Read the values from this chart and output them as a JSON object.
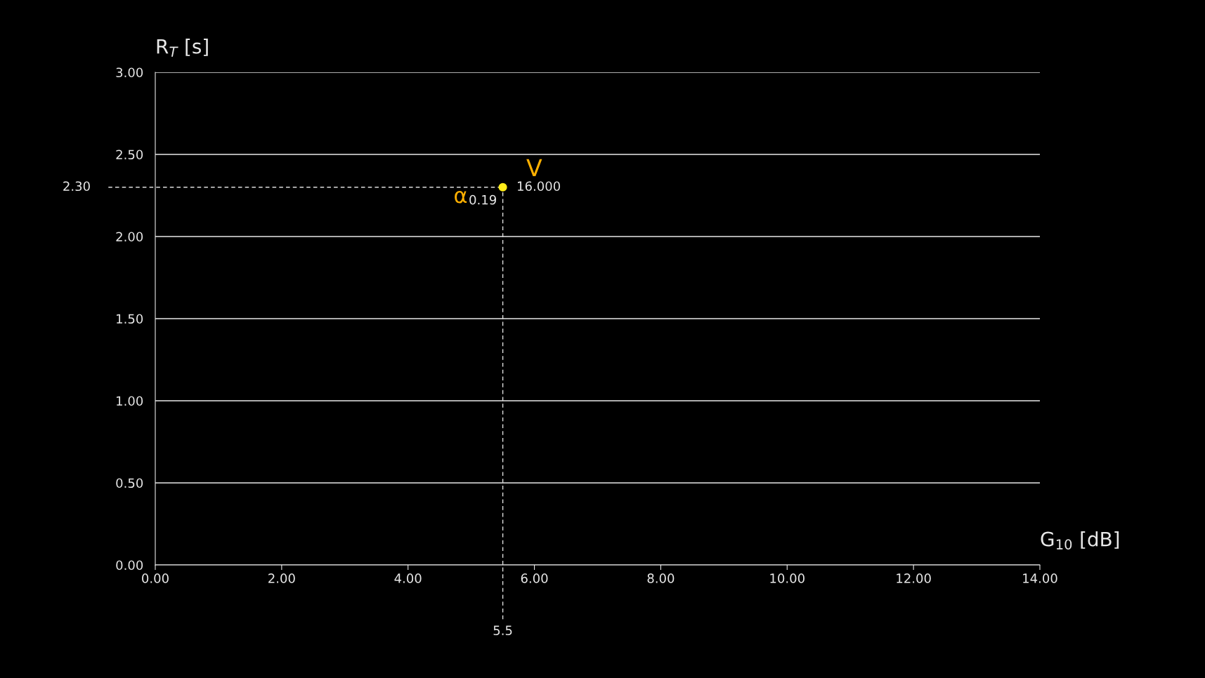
{
  "chart_data": {
    "type": "scatter",
    "xlabel": "G$_{10}$ [dB]",
    "ylabel": "R$_{T}$ [s]",
    "x": [
      5.5
    ],
    "series": [
      {
        "color": "#ffec1a",
        "values": [
          2.3
        ]
      }
    ],
    "marker": "circle",
    "grid": "y",
    "xlim": [
      0,
      14
    ],
    "ylim": [
      0,
      3
    ],
    "xticks": [
      {
        "value": 0,
        "label": "0.00"
      },
      {
        "value": 2,
        "label": "2.00"
      },
      {
        "value": 4,
        "label": "4.00"
      },
      {
        "value": 6,
        "label": "6.00"
      },
      {
        "value": 8,
        "label": "8.00"
      },
      {
        "value": 10,
        "label": "10.00"
      },
      {
        "value": 12,
        "label": "12.00"
      },
      {
        "value": 14,
        "label": "14.00"
      }
    ],
    "yticks": [
      {
        "value": 0,
        "label": "0.00"
      },
      {
        "value": 0.5,
        "label": "0.50"
      },
      {
        "value": 1,
        "label": "1.00"
      },
      {
        "value": 1.5,
        "label": "1.50"
      },
      {
        "value": 2,
        "label": "2.00"
      },
      {
        "value": 2.5,
        "label": "2.50"
      },
      {
        "value": 3,
        "label": "3.00"
      }
    ],
    "ref_lines": [
      {
        "axis": "y",
        "value": 2.3,
        "label": "2.30",
        "color": "#dddddd",
        "line_style": "dashed"
      },
      {
        "axis": "x",
        "value": 5.5,
        "label": "5.5",
        "color": "#dddddd",
        "line_style": "dashed"
      }
    ],
    "annotations": [
      "V",
      "16.000",
      "α",
      "0.19"
    ]
  }
}
